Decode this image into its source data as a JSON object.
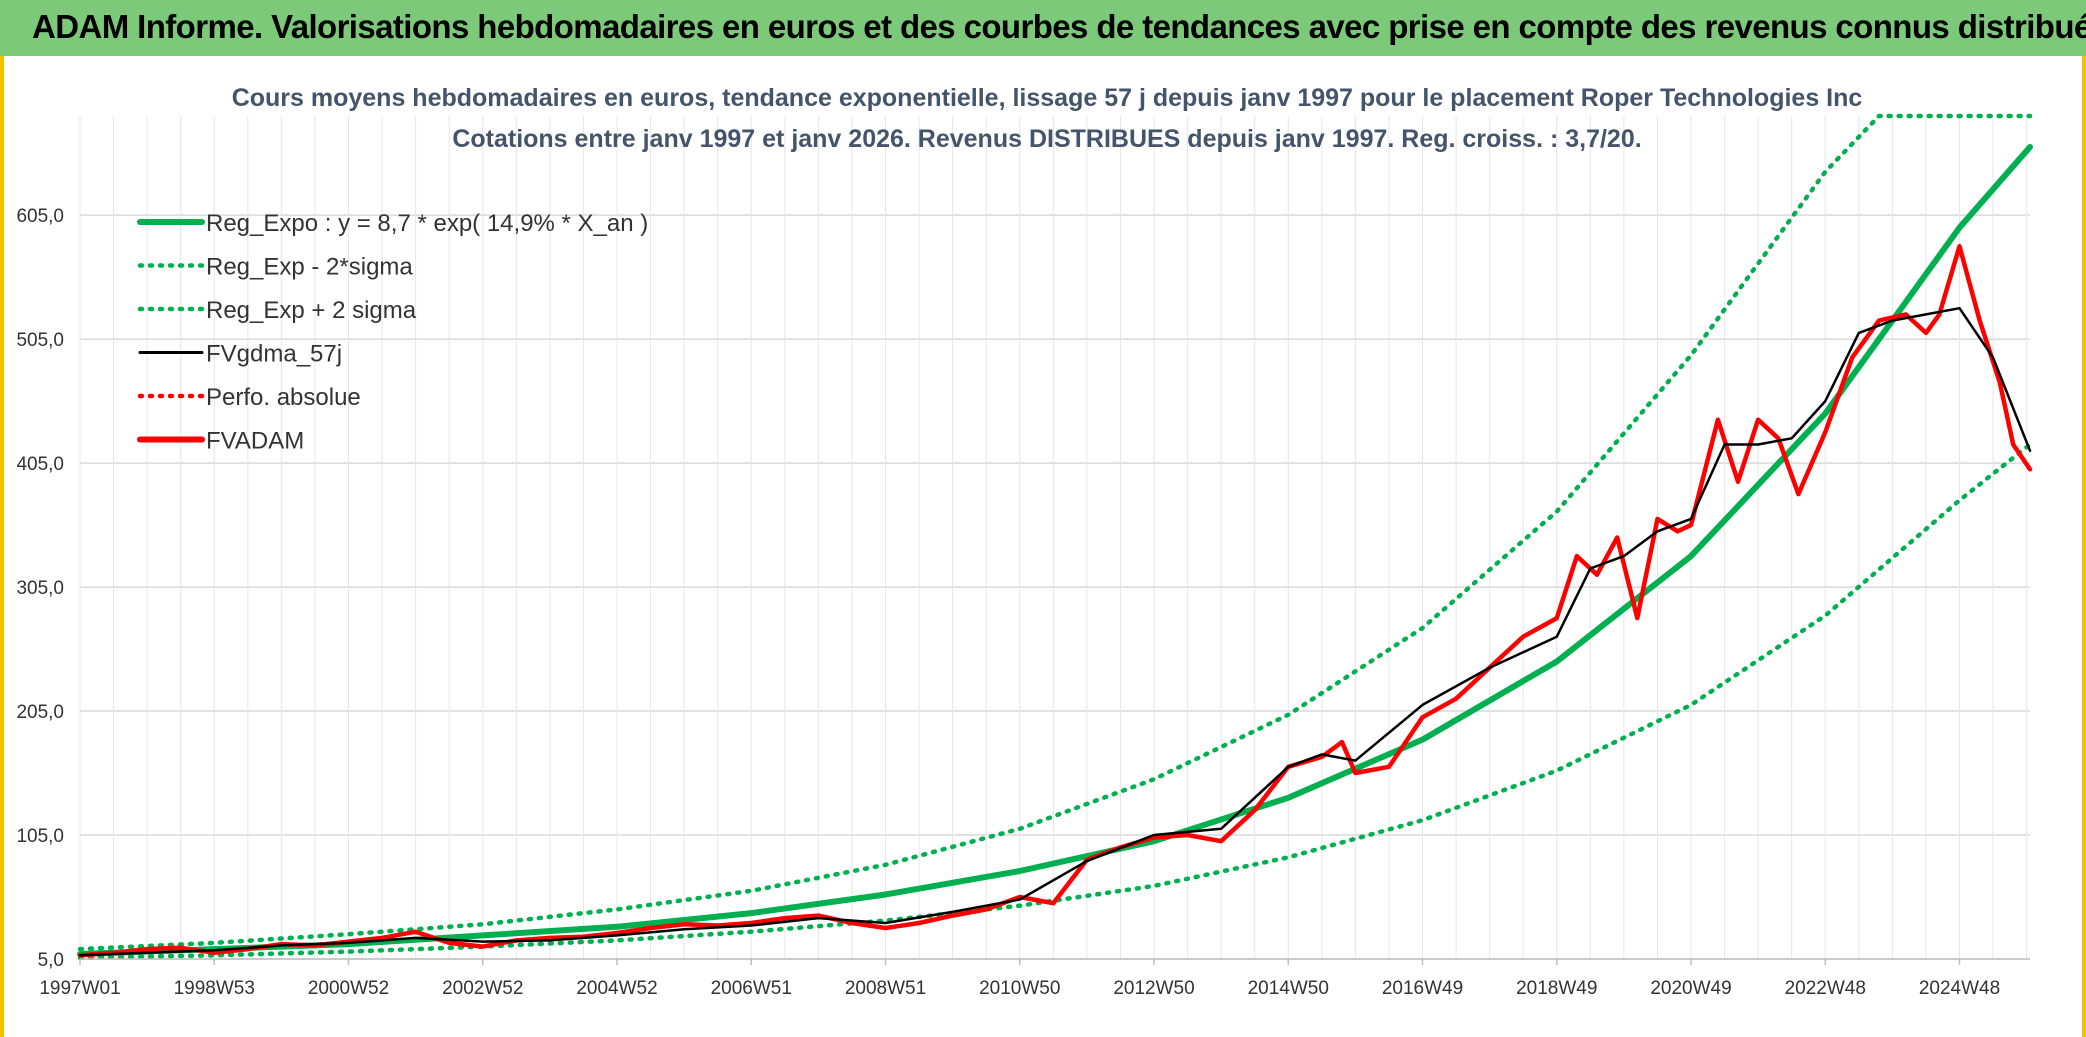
{
  "header": {
    "title": "ADAM Informe. Valorisations hebdomadaires en euros et des courbes de tendances avec prise en compte des revenus connus distribués"
  },
  "colors": {
    "banner": "#7dc97a",
    "regression": "#00b050",
    "smoothed": "#000000",
    "price": "#ff0000",
    "title": "#44546a"
  },
  "chart_data": {
    "type": "line",
    "title": "Cours moyens hebdomadaires en euros, tendance exponentielle, lissage 57 j depuis janv 1997 pour le placement Roper Technologies Inc",
    "subtitle": "Cotations entre janv 1997 et janv 2026. Revenus DISTRIBUES depuis janv 1997. Reg. croiss. : 3,7/20.",
    "xlabel": "",
    "ylabel": "",
    "xlim": [
      1997.0,
      2026.05
    ],
    "ylim": [
      5,
      685
    ],
    "grid": true,
    "legend_position": "top-left",
    "y_ticks": [
      {
        "value": 5,
        "label": "5,0"
      },
      {
        "value": 105,
        "label": "105,0"
      },
      {
        "value": 205,
        "label": "205,0"
      },
      {
        "value": 305,
        "label": "305,0"
      },
      {
        "value": 405,
        "label": "405,0"
      },
      {
        "value": 505,
        "label": "505,0"
      },
      {
        "value": 605,
        "label": "605,0"
      }
    ],
    "x_ticks": [
      {
        "value": 1997.0,
        "label": "1997W01"
      },
      {
        "value": 1999.0,
        "label": "1998W53"
      },
      {
        "value": 2001.0,
        "label": "2000W52"
      },
      {
        "value": 2003.0,
        "label": "2002W52"
      },
      {
        "value": 2005.0,
        "label": "2004W52"
      },
      {
        "value": 2007.0,
        "label": "2006W51"
      },
      {
        "value": 2009.0,
        "label": "2008W51"
      },
      {
        "value": 2011.0,
        "label": "2010W50"
      },
      {
        "value": 2013.0,
        "label": "2012W50"
      },
      {
        "value": 2015.0,
        "label": "2014W50"
      },
      {
        "value": 2017.0,
        "label": "2016W49"
      },
      {
        "value": 2019.0,
        "label": "2018W49"
      },
      {
        "value": 2021.0,
        "label": "2020W49"
      },
      {
        "value": 2023.0,
        "label": "2022W48"
      },
      {
        "value": 2025.0,
        "label": "2024W48"
      }
    ],
    "legend": [
      {
        "label": "Reg_Expo : y = 8,7 * exp( 14,9% *  X_an )",
        "style": "solid-thick",
        "color": "#00b050"
      },
      {
        "label": "Reg_Exp - 2*sigma",
        "style": "dotted",
        "color": "#00b050"
      },
      {
        "label": "Reg_Exp + 2 sigma",
        "style": "dotted",
        "color": "#00b050"
      },
      {
        "label": "FVgdma_57j",
        "style": "solid",
        "color": "#000000"
      },
      {
        "label": "Perfo. absolue",
        "style": "dotted",
        "color": "#ff0000"
      },
      {
        "label": "FVADAM",
        "style": "solid-thick",
        "color": "#ff0000"
      }
    ],
    "series": [
      {
        "name": "Reg_Expo : y = 8,7 * exp( 14,9% *  X_an )",
        "x": [
          1997.0,
          1999.0,
          2001.0,
          2003.0,
          2005.0,
          2007.0,
          2009.0,
          2011.0,
          2013.0,
          2015.0,
          2017.0,
          2019.0,
          2021.0,
          2023.0,
          2025.0,
          2026.05
        ],
        "values": [
          9,
          13,
          17,
          24,
          31,
          42,
          57,
          76,
          100,
          135,
          182,
          245,
          330,
          445,
          595,
          660
        ]
      },
      {
        "name": "Reg_Exp - 2*sigma",
        "x": [
          1997.0,
          1999.0,
          2001.0,
          2003.0,
          2005.0,
          2007.0,
          2009.0,
          2011.0,
          2013.0,
          2015.0,
          2017.0,
          2019.0,
          2021.0,
          2023.0,
          2025.0,
          2026.05
        ],
        "values": [
          6,
          8,
          11,
          15,
          20,
          27,
          36,
          48,
          64,
          87,
          117,
          157,
          210,
          282,
          375,
          420
        ]
      },
      {
        "name": "Reg_Exp + 2 sigma",
        "x": [
          1997.0,
          1999.0,
          2001.0,
          2003.0,
          2005.0,
          2007.0,
          2009.0,
          2011.0,
          2013.0,
          2015.0,
          2017.0,
          2019.0,
          2021.0,
          2023.0,
          2023.8,
          2026.05
        ],
        "values": [
          13,
          18,
          25,
          33,
          45,
          60,
          81,
          110,
          150,
          202,
          272,
          366,
          492,
          640,
          685,
          685
        ]
      },
      {
        "name": "FVgdma_57j",
        "x": [
          1997.0,
          1998.0,
          1999.0,
          2000.0,
          2001.0,
          2002.0,
          2003.0,
          2004.0,
          2005.0,
          2006.0,
          2007.0,
          2008.0,
          2009.0,
          2010.0,
          2011.0,
          2012.0,
          2013.0,
          2014.0,
          2015.0,
          2015.5,
          2016.0,
          2017.0,
          2018.0,
          2019.0,
          2019.5,
          2020.0,
          2020.5,
          2021.0,
          2021.5,
          2022.0,
          2022.5,
          2023.0,
          2023.5,
          2024.0,
          2024.5,
          2025.0,
          2025.5,
          2026.05
        ],
        "values": [
          8,
          10,
          12,
          16,
          18,
          22,
          19,
          20,
          24,
          29,
          32,
          38,
          34,
          43,
          53,
          84,
          105,
          110,
          160,
          170,
          165,
          210,
          240,
          265,
          320,
          330,
          350,
          360,
          420,
          420,
          425,
          455,
          510,
          520,
          525,
          530,
          490,
          415
        ]
      },
      {
        "name": "FVADAM",
        "x": [
          1997.0,
          1997.5,
          1998.0,
          1998.5,
          1999.0,
          1999.5,
          2000.0,
          2000.5,
          2001.0,
          2001.5,
          2002.0,
          2002.5,
          2003.0,
          2003.5,
          2004.0,
          2004.5,
          2005.0,
          2005.5,
          2006.0,
          2006.5,
          2007.0,
          2007.5,
          2008.0,
          2008.5,
          2009.0,
          2009.5,
          2010.0,
          2010.5,
          2011.0,
          2011.5,
          2012.0,
          2012.5,
          2013.0,
          2013.5,
          2014.0,
          2014.5,
          2015.0,
          2015.5,
          2015.8,
          2016.0,
          2016.5,
          2017.0,
          2017.5,
          2018.0,
          2018.5,
          2019.0,
          2019.3,
          2019.6,
          2019.9,
          2020.2,
          2020.5,
          2020.8,
          2021.0,
          2021.4,
          2021.7,
          2022.0,
          2022.3,
          2022.6,
          2023.0,
          2023.4,
          2023.8,
          2024.2,
          2024.5,
          2024.7,
          2025.0,
          2025.3,
          2025.6,
          2025.8,
          2026.05
        ],
        "values": [
          8,
          10,
          13,
          14,
          10,
          13,
          17,
          16,
          19,
          22,
          27,
          18,
          15,
          20,
          22,
          23,
          26,
          30,
          33,
          32,
          34,
          38,
          40,
          34,
          30,
          34,
          40,
          45,
          55,
          50,
          85,
          95,
          103,
          105,
          100,
          125,
          160,
          168,
          180,
          155,
          160,
          200,
          215,
          240,
          265,
          280,
          330,
          315,
          345,
          280,
          360,
          350,
          355,
          440,
          390,
          440,
          425,
          380,
          430,
          490,
          520,
          525,
          510,
          525,
          580,
          520,
          470,
          420,
          400
        ]
      }
    ]
  }
}
